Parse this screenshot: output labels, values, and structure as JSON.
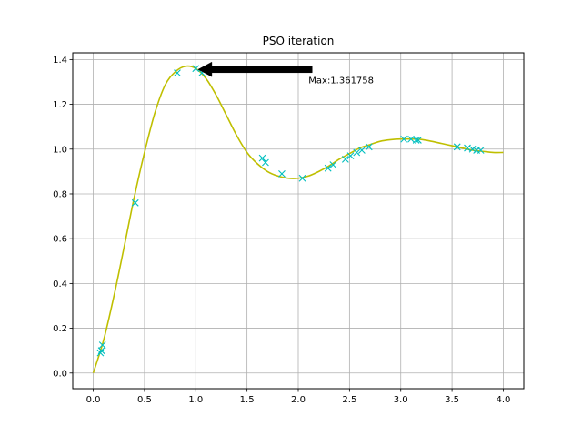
{
  "chart_data": {
    "type": "line",
    "title": "PSO iteration",
    "xlabel": "",
    "ylabel": "",
    "xlim": [
      -0.2,
      4.2
    ],
    "ylim": [
      -0.07,
      1.43
    ],
    "grid": true,
    "x_ticks": [
      0.0,
      0.5,
      1.0,
      1.5,
      2.0,
      2.5,
      3.0,
      3.5,
      4.0
    ],
    "x_tick_labels": [
      "0.0",
      "0.5",
      "1.0",
      "1.5",
      "2.0",
      "2.5",
      "3.0",
      "3.5",
      "4.0"
    ],
    "y_ticks": [
      0.0,
      0.2,
      0.4,
      0.6,
      0.8,
      1.0,
      1.2,
      1.4
    ],
    "y_tick_labels": [
      "0.0",
      "0.2",
      "0.4",
      "0.6",
      "0.8",
      "1.0",
      "1.2",
      "1.4"
    ],
    "curve": {
      "color": "#bfbf00",
      "x": [
        0.0,
        0.1,
        0.2,
        0.3,
        0.4,
        0.5,
        0.6,
        0.7,
        0.8,
        0.9,
        1.0,
        1.1,
        1.2,
        1.3,
        1.4,
        1.5,
        1.6,
        1.7,
        1.8,
        1.9,
        2.0,
        2.1,
        2.2,
        2.3,
        2.4,
        2.5,
        2.6,
        2.7,
        2.8,
        2.9,
        3.0,
        3.1,
        3.2,
        3.3,
        3.4,
        3.5,
        3.6,
        3.7,
        3.8,
        3.9,
        4.0
      ],
      "y": [
        0.0,
        0.145,
        0.34,
        0.56,
        0.785,
        0.985,
        1.16,
        1.285,
        1.345,
        1.37,
        1.36,
        1.315,
        1.24,
        1.15,
        1.06,
        0.985,
        0.935,
        0.9,
        0.88,
        0.87,
        0.87,
        0.88,
        0.9,
        0.925,
        0.955,
        0.98,
        1.005,
        1.02,
        1.035,
        1.042,
        1.045,
        1.045,
        1.043,
        1.035,
        1.025,
        1.015,
        1.005,
        0.995,
        0.99,
        0.985,
        0.985
      ]
    },
    "particles": {
      "color": "#00bfbf",
      "marker": "x",
      "points": [
        [
          0.07,
          0.09
        ],
        [
          0.08,
          0.1
        ],
        [
          0.09,
          0.125
        ],
        [
          0.41,
          0.76
        ],
        [
          0.82,
          1.34
        ],
        [
          1.0,
          1.36
        ],
        [
          1.06,
          1.34
        ],
        [
          1.65,
          0.96
        ],
        [
          1.68,
          0.94
        ],
        [
          1.84,
          0.89
        ],
        [
          2.04,
          0.87
        ],
        [
          2.29,
          0.915
        ],
        [
          2.34,
          0.93
        ],
        [
          2.46,
          0.955
        ],
        [
          2.51,
          0.97
        ],
        [
          2.57,
          0.985
        ],
        [
          2.62,
          0.995
        ],
        [
          2.69,
          1.01
        ],
        [
          3.03,
          1.045
        ],
        [
          3.1,
          1.045
        ],
        [
          3.15,
          1.04
        ],
        [
          3.17,
          1.04
        ],
        [
          3.55,
          1.01
        ],
        [
          3.65,
          1.005
        ],
        [
          3.7,
          1.0
        ],
        [
          3.74,
          0.995
        ],
        [
          3.78,
          0.995
        ]
      ]
    },
    "annotation": {
      "text": "Max:1.361758",
      "xy": [
        1.05,
        1.36
      ],
      "xytext": [
        2.1,
        1.31
      ],
      "arrow_color": "#000000"
    }
  }
}
